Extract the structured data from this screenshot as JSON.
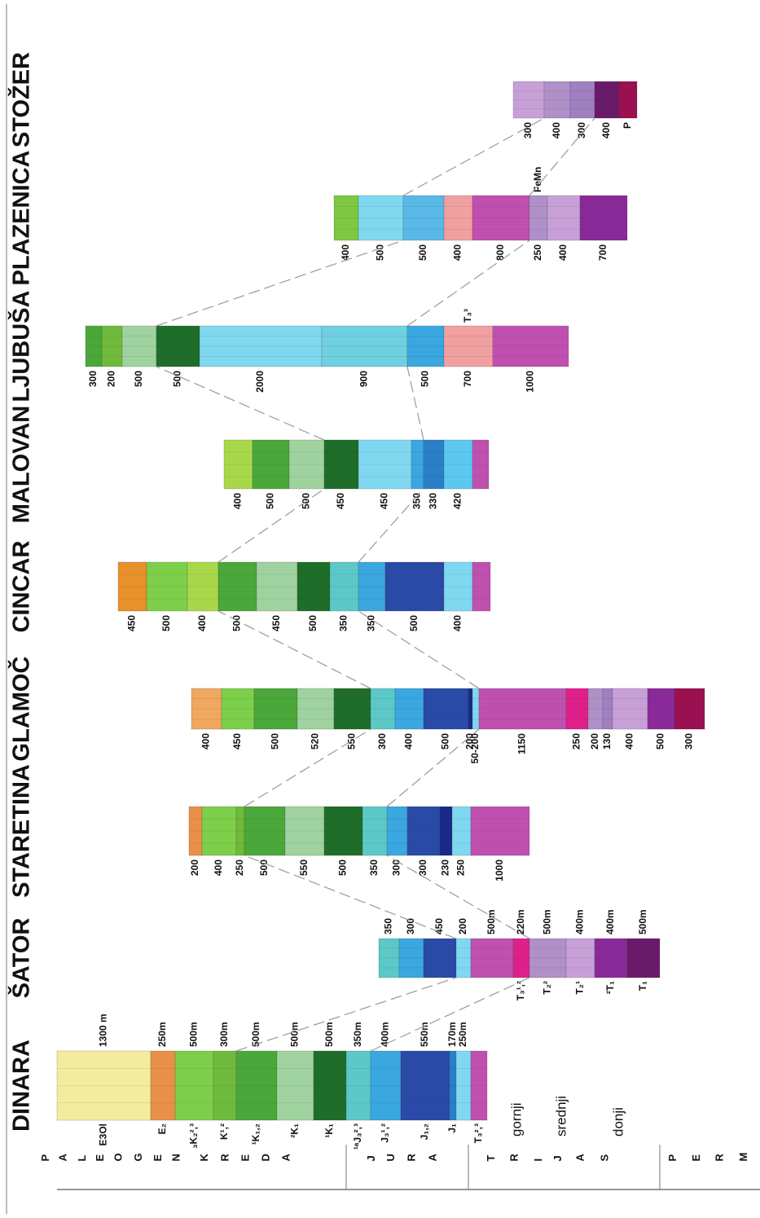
{
  "sections": [
    {
      "name": "DINARA",
      "layers": [
        {
          "thickness": "1300 m",
          "unit": "E3Ol",
          "color": "#f2ec9c"
        },
        {
          "thickness": "250m",
          "unit": "E₂",
          "color": "#e8904a"
        },
        {
          "thickness": "500m",
          "unit": "₃K₂²,³",
          "color": "#7dcf4a"
        },
        {
          "thickness": "300m",
          "unit": "K¹,²",
          "color": "#6fba3c"
        },
        {
          "thickness": "500m",
          "unit": "¹K₁,₂",
          "color": "#4aa83a"
        },
        {
          "thickness": "500m",
          "unit": "²K₁",
          "color": "#9fd29f"
        },
        {
          "thickness": "500m",
          "unit": "¹K₁",
          "color": "#1e6e2a"
        },
        {
          "thickness": "350m",
          "unit": "¹ᵃJ₃²,³",
          "color": "#5cc8c8"
        },
        {
          "thickness": "400m",
          "unit": "J₃¹,²",
          "color": "#3aa7e0"
        },
        {
          "thickness": "550m",
          "unit": "J₁,₂",
          "color": "#2a4aa8"
        },
        {
          "thickness": "170m",
          "unit": "J₁",
          "color": "#2a7fc8"
        },
        {
          "thickness": "250m",
          "color": "#7fd8f0"
        },
        {
          "unit": "T₃²,³",
          "color": "#c050b0"
        }
      ]
    },
    {
      "name": "ŠATOR",
      "layers": [
        {
          "thickness": "350",
          "color": "#5cc8c8"
        },
        {
          "thickness": "300",
          "color": "#3aa7e0"
        },
        {
          "thickness": "450",
          "color": "#2a4aa8"
        },
        {
          "thickness": "200",
          "color": "#7fd8f0"
        },
        {
          "thickness": "500m",
          "color": "#c050b0"
        },
        {
          "thickness": "220m",
          "unit": "T₃¹,²",
          "color": "#e0208a"
        },
        {
          "thickness": "500m",
          "unit": "T₂²",
          "color": "#b090c8"
        },
        {
          "thickness": "400m",
          "unit": "T₂¹",
          "color": "#c8a0d8"
        },
        {
          "thickness": "400m",
          "unit": "²T₁",
          "color": "#8a2a9a"
        },
        {
          "thickness": "500m",
          "unit": "T₁",
          "color": "#6a1a6a"
        }
      ]
    },
    {
      "name": "STARETINA",
      "layers": [
        {
          "thickness": "200",
          "color": "#e8904a"
        },
        {
          "thickness": "400",
          "color": "#7dcf4a"
        },
        {
          "thickness": "250",
          "color": "#6fba3c"
        },
        {
          "thickness": "500",
          "color": "#4aa83a"
        },
        {
          "thickness": "550",
          "color": "#9fd29f"
        },
        {
          "thickness": "500",
          "color": "#1e6e2a"
        },
        {
          "thickness": "350",
          "color": "#5cc8c8"
        },
        {
          "thickness": "300",
          "color": "#3aa7e0"
        },
        {
          "thickness": "300",
          "color": "#2a4aa8"
        },
        {
          "thickness": "230",
          "color": "#1a2a88"
        },
        {
          "thickness": "250",
          "color": "#7fd8f0"
        },
        {
          "thickness": "1000",
          "color": "#c050b0"
        }
      ]
    },
    {
      "name": "GLAMOČ",
      "layers": [
        {
          "thickness": "400",
          "color": "#f0a860"
        },
        {
          "thickness": "450",
          "color": "#7dcf4a"
        },
        {
          "thickness": "500",
          "color": "#4aa83a"
        },
        {
          "thickness": "520",
          "color": "#9fd29f"
        },
        {
          "thickness": "550",
          "color": "#1e6e2a"
        },
        {
          "thickness": "300",
          "color": "#5cc8c8"
        },
        {
          "thickness": "400",
          "color": "#3aa7e0"
        },
        {
          "thickness": "500",
          "color": "#2a4aa8"
        },
        {
          "thickness": "200",
          "color": "#1a2a88"
        },
        {
          "thickness": "50-200",
          "color": "#7fd8f0"
        },
        {
          "thickness": "1150",
          "color": "#c050b0"
        },
        {
          "thickness": "250",
          "color": "#e0208a"
        },
        {
          "thickness": "200",
          "color": "#b090c8"
        },
        {
          "thickness": "130",
          "color": "#a080c0"
        },
        {
          "thickness": "400",
          "color": "#c8a0d8"
        },
        {
          "thickness": "500",
          "color": "#8a2a9a"
        },
        {
          "thickness": "300",
          "color": "#9a1050"
        }
      ]
    },
    {
      "name": "CINCAR",
      "layers": [
        {
          "thickness": "450",
          "color": "#e8902a"
        },
        {
          "thickness": "500",
          "color": "#7dcf4a"
        },
        {
          "thickness": "400",
          "color": "#a8d84a"
        },
        {
          "thickness": "500",
          "color": "#4aa83a"
        },
        {
          "thickness": "450",
          "color": "#9fd29f"
        },
        {
          "thickness": "500",
          "color": "#1e6e2a"
        },
        {
          "thickness": "350",
          "color": "#5cc8c8"
        },
        {
          "thickness": "350",
          "color": "#3aa7e0"
        },
        {
          "thickness": "500",
          "color": "#2a4aa8"
        },
        {
          "thickness": "400",
          "color": "#7fd8f0"
        },
        {
          "color": "#c050b0"
        }
      ]
    },
    {
      "name": "MALOVAN",
      "layers": [
        {
          "thickness": "400",
          "color": "#a8d84a"
        },
        {
          "thickness": "500",
          "color": "#4aa83a"
        },
        {
          "thickness": "500",
          "color": "#9fd29f"
        },
        {
          "thickness": "450",
          "color": "#1e6e2a"
        },
        {
          "thickness": "450",
          "color": "#7fd8f0"
        },
        {
          "thickness": "350",
          "color": "#3aa7e0"
        },
        {
          "thickness": "330",
          "color": "#2a7fc8"
        },
        {
          "thickness": "420",
          "color": "#5cc8f0"
        },
        {
          "color": "#c050b0"
        }
      ]
    },
    {
      "name": "LJUBUŠA",
      "layers": [
        {
          "thickness": "300",
          "color": "#4aa83a"
        },
        {
          "thickness": "200",
          "color": "#6fba3c"
        },
        {
          "thickness": "500",
          "color": "#9fd29f"
        },
        {
          "thickness": "500",
          "color": "#1e6e2a"
        },
        {
          "thickness": "2000",
          "color": "#7fd8f0"
        },
        {
          "thickness": "900",
          "color": "#6fd0e0"
        },
        {
          "thickness": "500",
          "color": "#3aa7e0"
        },
        {
          "thickness": "700",
          "unit": "T₃³",
          "color": "#f0a0a0"
        },
        {
          "thickness": "1000",
          "color": "#c050b0"
        }
      ]
    },
    {
      "name": "PLAZENICA",
      "layers": [
        {
          "thickness": "400",
          "color": "#7dc840"
        },
        {
          "thickness": "500",
          "color": "#7fd8f0"
        },
        {
          "thickness": "500",
          "color": "#5ab8e8"
        },
        {
          "thickness": "400",
          "color": "#f0a0a0"
        },
        {
          "thickness": "800",
          "color": "#c050b0"
        },
        {
          "thickness": "250",
          "unit": "FeMn",
          "color": "#b090c8"
        },
        {
          "thickness": "400",
          "color": "#c8a0d8"
        },
        {
          "thickness": "700",
          "color": "#8a2a9a"
        }
      ]
    },
    {
      "name": "STOŽER",
      "layers": [
        {
          "thickness": "300",
          "color": "#c8a0d8"
        },
        {
          "thickness": "400",
          "color": "#b090c8"
        },
        {
          "thickness": "300",
          "color": "#a080c0"
        },
        {
          "thickness": "400",
          "color": "#6a1a6a"
        },
        {
          "thickness": "P",
          "color": "#9a1050"
        }
      ]
    }
  ],
  "legend": {
    "periods": [
      "PALEOGEN",
      "KREDA",
      "JURA",
      "TRIJAS",
      "PERM"
    ],
    "subdivisions": [
      "gornji",
      "srednji",
      "donji"
    ]
  }
}
